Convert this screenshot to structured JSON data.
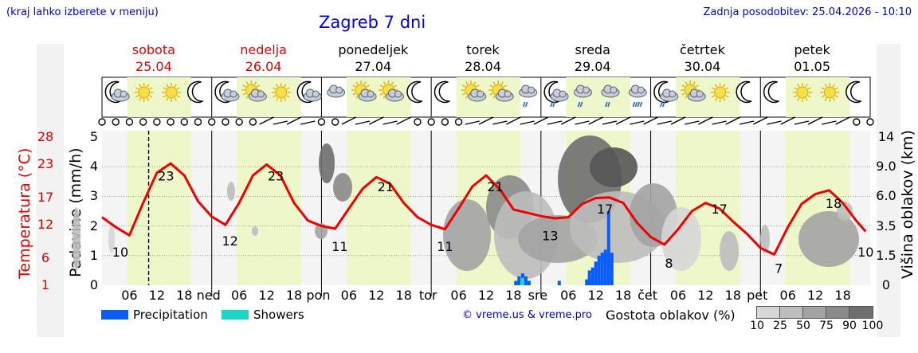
{
  "header": {
    "left_note": "(kraj lahko izberete v meniju)",
    "title": "Zagreb 7 dni",
    "updated": "Zadnja posodobitev: 25.04.2026 - 10:10"
  },
  "days": [
    {
      "name": "sobota",
      "date": "25.04",
      "weekend": true
    },
    {
      "name": "nedelja",
      "date": "26.04",
      "weekend": true
    },
    {
      "name": "ponedeljek",
      "date": "27.04",
      "weekend": false
    },
    {
      "name": "torek",
      "date": "28.04",
      "weekend": false
    },
    {
      "name": "sreda",
      "date": "29.04",
      "weekend": false
    },
    {
      "name": "četrtek",
      "date": "30.04",
      "weekend": false
    },
    {
      "name": "petek",
      "date": "01.05",
      "weekend": false
    }
  ],
  "axes": {
    "temperature_label": "Temperatura (°C)",
    "precip_label": "Padavine (mm/h)",
    "cloud_height_label": "Višina oblakov (km)",
    "temperature_ticks": [
      "28",
      "23",
      "17",
      "12",
      "6",
      "1"
    ],
    "precip_ticks": [
      "5",
      "4",
      "3",
      "2",
      "1",
      "0"
    ],
    "cloud_height_ticks": [
      "14",
      "9.0",
      "6.0",
      "3.5",
      "1.5",
      "0"
    ],
    "x_day_abbrev": [
      "ned",
      "pon",
      "tor",
      "sre",
      "čet",
      "pet"
    ],
    "x_hour_labels": [
      "06",
      "12",
      "18"
    ]
  },
  "legend": {
    "precipitation": "Precipitation",
    "showers": "Showers",
    "copyright": "© vreme.us & vreme.pro",
    "cloud_density_title": "Gostota oblakov (%)",
    "cloud_density_levels": [
      "10",
      "25",
      "50",
      "75",
      "90",
      "100"
    ]
  },
  "colors": {
    "precipitation": "#0a5cf5",
    "showers": "#1ad6c4",
    "temperature": "#ee0000",
    "daylight": "#eef7c9",
    "weekend_text": "#dd0000",
    "label_blue": "#0000cc",
    "cloud_scale": [
      "#d6d6d6",
      "#bdbdbd",
      "#a3a3a3",
      "#8a8a8a",
      "#6e6e6e",
      "#555555"
    ]
  },
  "weather_icons": [
    "moon-cloud",
    "sun",
    "sun",
    "moon",
    "moon-cloud",
    "sun-cloud",
    "sun",
    "moon-cloud",
    "cloud",
    "sun-cloud",
    "sun-cloud",
    "moon",
    "moon",
    "sun-cloud",
    "cloud-sun",
    "cloud-rain",
    "moon-rain",
    "cloud-rain",
    "cloud-rain",
    "cloud-heavy-rain",
    "moon-rain",
    "sun-cloud",
    "sun",
    "moon",
    "moon",
    "sun",
    "sun",
    "moon"
  ],
  "chart_data": {
    "type": "line",
    "title": "Zagreb 7 dni",
    "xlabel": "",
    "ylabel": "Temperatura (°C)",
    "ylim": [
      1,
      28
    ],
    "x_unit": "hours from 25.04 00:00",
    "now_marker_hour": 10.2,
    "series": [
      {
        "name": "Temperatura",
        "x": [
          0,
          3,
          6,
          9,
          12,
          15,
          18,
          21,
          24,
          27,
          30,
          33,
          36,
          39,
          42,
          45,
          48,
          51,
          54,
          57,
          60,
          63,
          66,
          69,
          72,
          75,
          78,
          81,
          84,
          87,
          90,
          93,
          96,
          99,
          102,
          105,
          108,
          111,
          114,
          117,
          120,
          123,
          126,
          129,
          132,
          135,
          138,
          141,
          144,
          147,
          150,
          153,
          156,
          159,
          162,
          165,
          167
        ],
        "values": [
          13.4,
          11.6,
          10.1,
          16.0,
          21.5,
          23.2,
          21.0,
          16.3,
          13.5,
          12.0,
          16.0,
          21.0,
          23.0,
          21.0,
          16.0,
          12.8,
          11.8,
          11.3,
          15.0,
          18.6,
          20.7,
          19.5,
          16.0,
          13.4,
          12.0,
          11.2,
          15.0,
          19.0,
          21.0,
          18.5,
          14.8,
          14.2,
          13.6,
          13.2,
          13.4,
          15.8,
          16.9,
          17.0,
          16.0,
          12.4,
          9.8,
          8.4,
          11.2,
          14.5,
          16.0,
          15.0,
          12.6,
          10.4,
          7.8,
          6.6,
          11.6,
          15.8,
          17.6,
          18.3,
          16.0,
          12.7,
          10.8
        ]
      },
      {
        "name": "Precipitation",
        "unit": "mm/h",
        "x": [
          90.5,
          91.2,
          92,
          92.7,
          93.4,
          100,
          106,
          106.6,
          107.3,
          108,
          108.7,
          109.4,
          110.1,
          110.8,
          111.5
        ],
        "values": [
          0.15,
          0.3,
          0.4,
          0.3,
          0.15,
          0.15,
          0.2,
          0.5,
          0.6,
          0.8,
          1.0,
          1.1,
          1.2,
          2.5,
          1.1
        ]
      },
      {
        "name": "Showers",
        "unit": "mm/h",
        "x": [
          92
        ],
        "values": [
          0.25
        ]
      }
    ],
    "data_labels": [
      {
        "x": 4,
        "value": "10"
      },
      {
        "x": 14,
        "value": "23"
      },
      {
        "x": 28,
        "value": "12"
      },
      {
        "x": 38,
        "value": "23"
      },
      {
        "x": 52,
        "value": "11"
      },
      {
        "x": 62,
        "value": "21"
      },
      {
        "x": 75,
        "value": "11"
      },
      {
        "x": 86,
        "value": "21"
      },
      {
        "x": 98,
        "value": "13"
      },
      {
        "x": 110,
        "value": "17"
      },
      {
        "x": 124,
        "value": "8"
      },
      {
        "x": 135,
        "value": "17"
      },
      {
        "x": 148,
        "value": "7"
      },
      {
        "x": 160,
        "value": "18"
      },
      {
        "x": 167,
        "value": "10"
      }
    ]
  }
}
